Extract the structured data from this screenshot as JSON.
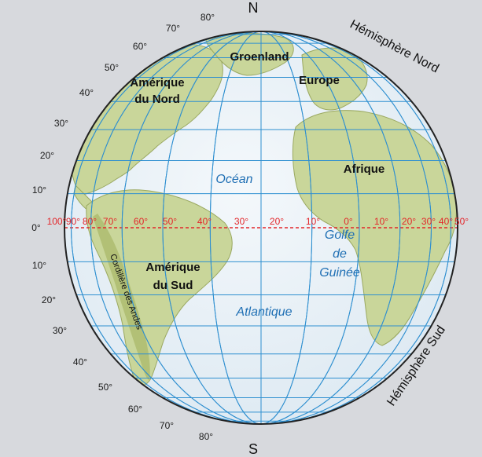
{
  "poles": {
    "north": "N",
    "south": "S"
  },
  "hemispheres": {
    "north": "Hémisphère Nord",
    "south": "Hémisphère Sud"
  },
  "regions": {
    "groenland": "Groenland",
    "europe": "Europe",
    "amerique_nord": [
      "Amérique",
      "du Nord"
    ],
    "afrique": "Afrique",
    "amerique_sud": [
      "Amérique",
      "du Sud"
    ],
    "cordillere": "Cordillère des Andes"
  },
  "seas": {
    "ocean": "Océan",
    "atlantique": "Atlantique",
    "golfe": [
      "Golfe",
      "de",
      "Guinée"
    ]
  },
  "latitude_labels": {
    "north": [
      "80°",
      "70°",
      "60°",
      "50°",
      "40°",
      "30°",
      "20°",
      "10°"
    ],
    "equator": "0°",
    "south": [
      "10°",
      "20°",
      "30°",
      "40°",
      "50°",
      "60°",
      "70°",
      "80°"
    ]
  },
  "longitude_labels": {
    "west": [
      "90°",
      "80°",
      "70°",
      "60°",
      "50°",
      "40°",
      "30°",
      "20°",
      "10°"
    ],
    "west_edge": "100°",
    "prime": "0°",
    "east": [
      "10°",
      "20°",
      "30°",
      "40°",
      "50°"
    ]
  },
  "colors": {
    "ocean": "#e9f2f8",
    "grid": "#2e8fd0",
    "land": "#c9d69a",
    "land_dark": "#aab86a",
    "equator": "#e3262a",
    "outline": "#222222"
  }
}
